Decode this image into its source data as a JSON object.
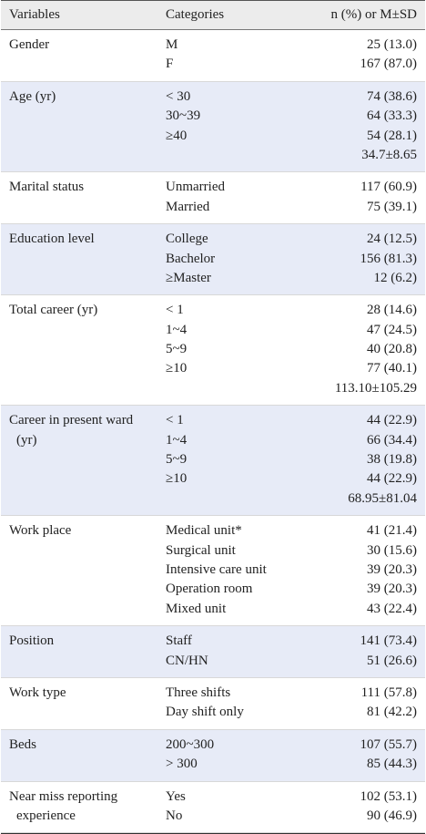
{
  "table": {
    "header": [
      "Variables",
      "Categories",
      "n (%) or M±SD"
    ],
    "rows": [
      {
        "variable": "Gender",
        "categories": [
          "M",
          "F"
        ],
        "values": [
          "25 (13.0)",
          "167 (87.0)"
        ]
      },
      {
        "variable": "Age (yr)",
        "categories": [
          "< 30",
          "30~39",
          "≥40",
          null
        ],
        "values": [
          "74 (38.6)",
          "64 (33.3)",
          "54 (28.1)",
          "34.7±8.65"
        ]
      },
      {
        "variable": "Marital status",
        "categories": [
          "Unmarried",
          "Married"
        ],
        "values": [
          "117 (60.9)",
          "75 (39.1)"
        ]
      },
      {
        "variable": "Education level",
        "categories": [
          "College",
          "Bachelor",
          "≥Master"
        ],
        "values": [
          "24 (12.5)",
          "156 (81.3)",
          "12 (6.2)"
        ]
      },
      {
        "variable": "Total career (yr)",
        "categories": [
          "< 1",
          "1~4",
          "5~9",
          "≥10",
          null
        ],
        "values": [
          "28 (14.6)",
          "47 (24.5)",
          "40 (20.8)",
          "77 (40.1)",
          "113.10±105.29"
        ]
      },
      {
        "variable": "Career in present ward (yr)",
        "categories": [
          "< 1",
          "1~4",
          "5~9",
          "≥10",
          null
        ],
        "values": [
          "44 (22.9)",
          "66 (34.4)",
          "38 (19.8)",
          "44 (22.9)",
          "68.95±81.04"
        ]
      },
      {
        "variable": "Work place",
        "categories": [
          "Medical unit*",
          "Surgical unit",
          "Intensive care unit",
          "Operation room",
          "Mixed unit"
        ],
        "values": [
          "41 (21.4)",
          "30 (15.6)",
          "39 (20.3)",
          "39 (20.3)",
          "43 (22.4)"
        ]
      },
      {
        "variable": "Position",
        "categories": [
          "Staff",
          "CN/HN"
        ],
        "values": [
          "141 (73.4)",
          "51 (26.6)"
        ]
      },
      {
        "variable": "Work type",
        "categories": [
          "Three shifts",
          "Day shift only"
        ],
        "values": [
          "111 (57.8)",
          "81 (42.2)"
        ]
      },
      {
        "variable": "Beds",
        "categories": [
          "200~300",
          "> 300"
        ],
        "values": [
          "107 (55.7)",
          "85 (44.3)"
        ]
      },
      {
        "variable": "Near miss reporting experience",
        "categories": [
          "Yes",
          "No"
        ],
        "values": [
          "102 (53.1)",
          "90 (46.9)"
        ]
      }
    ]
  }
}
